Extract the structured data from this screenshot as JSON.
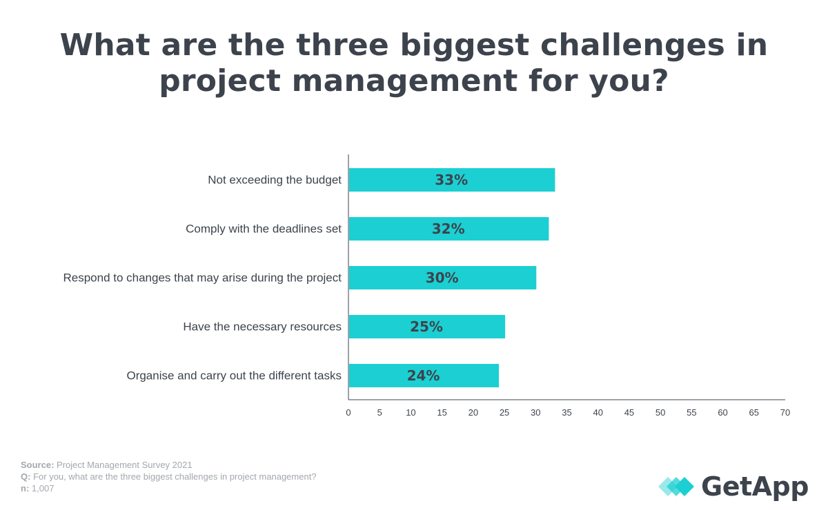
{
  "title": "What are the three biggest challenges in project management for you?",
  "chart_data": {
    "type": "bar",
    "orientation": "horizontal",
    "categories": [
      "Not exceeding the budget",
      "Comply with the deadlines set",
      "Respond to changes that may arise during the project",
      "Have the necessary resources",
      "Organise and carry out the different tasks"
    ],
    "values": [
      33,
      32,
      30,
      25,
      24
    ],
    "data_labels": [
      "33%",
      "32%",
      "30%",
      "25%",
      "24%"
    ],
    "xlim": [
      0,
      70
    ],
    "x_ticks": [
      0,
      5,
      10,
      15,
      20,
      25,
      30,
      35,
      40,
      45,
      50,
      55,
      60,
      65,
      70
    ],
    "grid": false,
    "bar_color": "#1ccfd2"
  },
  "footnote": {
    "source_key": "Source:",
    "source_value": "Project Management Survey 2021",
    "question_key": "Q:",
    "question_value": "For you, what are the three biggest challenges in project management?",
    "n_key": "n:",
    "n_value": "1,007"
  },
  "logo": {
    "text": "GetApp",
    "colors": [
      "#1ccfd2",
      "#3d434c"
    ]
  }
}
